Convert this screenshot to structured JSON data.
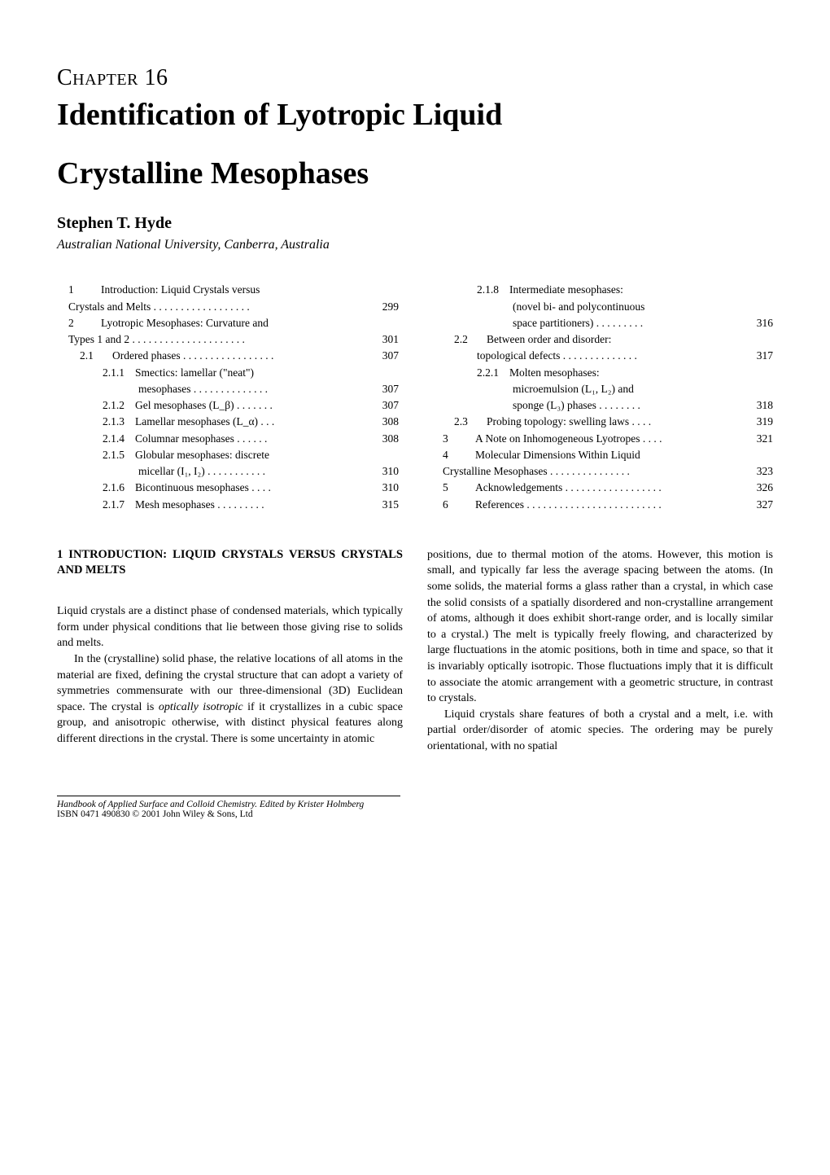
{
  "chapter": {
    "number_label": "Chapter 16",
    "title_line1": "Identification of Lyotropic Liquid",
    "title_line2": "Crystalline Mesophases"
  },
  "author": "Stephen T. Hyde",
  "affiliation": "Australian National University, Canberra, Australia",
  "toc_left": [
    {
      "num": "1",
      "label": "Introduction: Liquid Crystals versus",
      "page": "",
      "pad": "pad-1"
    },
    {
      "num": "",
      "label": "Crystals and Melts . . . . . . . . . . . . . . . . . .",
      "page": "299",
      "pad": "pad-1"
    },
    {
      "num": "2",
      "label": "Lyotropic Mesophases: Curvature and",
      "page": "",
      "pad": "pad-1"
    },
    {
      "num": "",
      "label": "Types 1 and 2 . . . . . . . . . . . . . . . . . . . . .",
      "page": "301",
      "pad": "pad-1"
    },
    {
      "num": "2.1",
      "label": "Ordered phases . . . . . . . . . . . . . . . . .",
      "page": "307",
      "pad": "pad-2"
    },
    {
      "num": "2.1.1",
      "label": "Smectics: lamellar (\"neat\")",
      "page": "",
      "pad": "pad-3"
    },
    {
      "num": "",
      "label": "mesophases . . . . . . . . . . . . . .",
      "page": "307",
      "pad": "pad-4"
    },
    {
      "num": "2.1.2",
      "label": "Gel mesophases (L_β) . . . . . . .",
      "page": "307",
      "pad": "pad-3"
    },
    {
      "num": "2.1.3",
      "label": "Lamellar mesophases (L_α) . . .",
      "page": "308",
      "pad": "pad-3"
    },
    {
      "num": "2.1.4",
      "label": "Columnar mesophases . . . . . .",
      "page": "308",
      "pad": "pad-3"
    },
    {
      "num": "2.1.5",
      "label": "Globular mesophases: discrete",
      "page": "",
      "pad": "pad-3"
    },
    {
      "num": "",
      "label": "micellar (I₁, I₂) . . . . . . . . . . .",
      "page": "310",
      "pad": "pad-4"
    },
    {
      "num": "2.1.6",
      "label": "Bicontinuous mesophases . . . .",
      "page": "310",
      "pad": "pad-3"
    },
    {
      "num": "2.1.7",
      "label": "Mesh mesophases . . . . . . . . .",
      "page": "315",
      "pad": "pad-3"
    }
  ],
  "toc_right": [
    {
      "num": "2.1.8",
      "label": "Intermediate mesophases:",
      "page": "",
      "pad": "pad-3"
    },
    {
      "num": "",
      "label": "(novel bi- and polycontinuous",
      "page": "",
      "pad": "pad-4"
    },
    {
      "num": "",
      "label": "space partitioners) . . . . . . . . .",
      "page": "316",
      "pad": "pad-4"
    },
    {
      "num": "2.2",
      "label": "Between order and disorder:",
      "page": "",
      "pad": "pad-2"
    },
    {
      "num": "",
      "label": "topological defects . . . . . . . . . . . . . .",
      "page": "317",
      "pad": "pad-3"
    },
    {
      "num": "2.2.1",
      "label": "Molten mesophases:",
      "page": "",
      "pad": "pad-3"
    },
    {
      "num": "",
      "label": "microemulsion (L₁, L₂) and",
      "page": "",
      "pad": "pad-4"
    },
    {
      "num": "",
      "label": "sponge (L₃) phases . . . . . . . .",
      "page": "318",
      "pad": "pad-4"
    },
    {
      "num": "2.3",
      "label": "Probing topology: swelling laws . . . .",
      "page": "319",
      "pad": "pad-2"
    },
    {
      "num": "3",
      "label": "A Note on Inhomogeneous Lyotropes . . . .",
      "page": "321",
      "pad": "pad-1"
    },
    {
      "num": "4",
      "label": "Molecular Dimensions Within Liquid",
      "page": "",
      "pad": "pad-1"
    },
    {
      "num": "",
      "label": "Crystalline Mesophases . . . . . . . . . . . . . . .",
      "page": "323",
      "pad": "pad-1"
    },
    {
      "num": "5",
      "label": "Acknowledgements . . . . . . . . . . . . . . . . . .",
      "page": "326",
      "pad": "pad-1"
    },
    {
      "num": "6",
      "label": "References . . . . . . . . . . . . . . . . . . . . . . . . .",
      "page": "327",
      "pad": "pad-1"
    }
  ],
  "section_heading": "1  INTRODUCTION: LIQUID CRYSTALS VERSUS CRYSTALS AND MELTS",
  "left_paras": [
    "Liquid crystals are a distinct phase of condensed materials, which typically form under physical conditions that lie between those giving rise to solids and melts.",
    "In the (crystalline) solid phase, the relative locations of all atoms in the material are fixed, defining the crystal structure that can adopt a variety of symmetries commensurate with our three-dimensional (3D) Euclidean space. The crystal is optically isotropic if it crystallizes in a cubic space group, and anisotropic otherwise, with distinct physical features along different directions in the crystal. There is some uncertainty in atomic"
  ],
  "right_paras": [
    "positions, due to thermal motion of the atoms. However, this motion is small, and typically far less the average spacing between the atoms. (In some solids, the material forms a glass rather than a crystal, in which case the solid consists of a spatially disordered and non-crystalline arrangement of atoms, although it does exhibit short-range order, and is locally similar to a crystal.) The melt is typically freely flowing, and characterized by large fluctuations in the atomic positions, both in time and space, so that it is invariably optically isotropic. Those fluctuations imply that it is difficult to associate the atomic arrangement with a geometric structure, in contrast to crystals.",
    "Liquid crystals share features of both a crystal and a melt, i.e. with partial order/disorder of atomic species. The ordering may be purely orientational, with no spatial"
  ],
  "footer_line1": "Handbook of Applied Surface and Colloid Chemistry. Edited by Krister Holmberg",
  "footer_line2": "ISBN 0471 490830 © 2001 John Wiley & Sons, Ltd"
}
